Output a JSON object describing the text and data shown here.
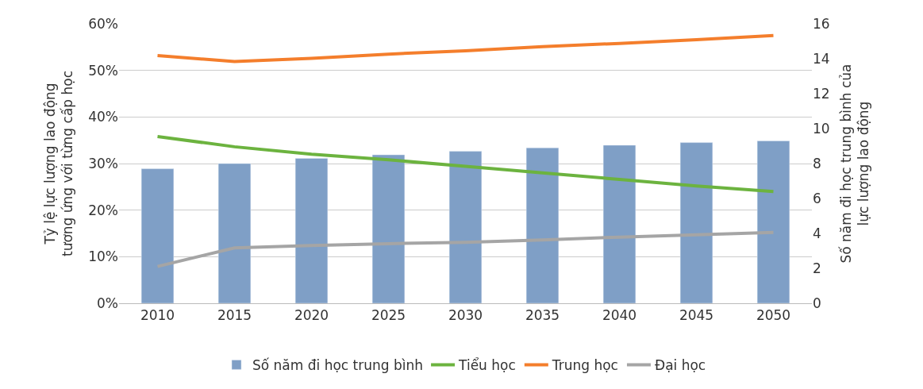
{
  "chart_data": {
    "type": "bar",
    "categories": [
      "2010",
      "2015",
      "2020",
      "2025",
      "2030",
      "2035",
      "2040",
      "2045",
      "2050"
    ],
    "ylabel": "Tỷ lệ lực lượng lao động\ntương ứng với từng cấp học",
    "y2label": "Số năm đi học trung bình của\nlực lượng lao động",
    "ylim": [
      0,
      60
    ],
    "yticks": [
      {
        "value": 0,
        "label": "0%"
      },
      {
        "value": 10,
        "label": "10%"
      },
      {
        "value": 20,
        "label": "20%"
      },
      {
        "value": 30,
        "label": "30%"
      },
      {
        "value": 40,
        "label": "40%"
      },
      {
        "value": 50,
        "label": "50%"
      },
      {
        "value": 60,
        "label": "60%"
      }
    ],
    "y2lim": [
      0,
      16
    ],
    "y2ticks": [
      0,
      2,
      4,
      6,
      8,
      10,
      12,
      14,
      16
    ],
    "grid": "y",
    "legend": "bottom",
    "marker": "none",
    "line_style": "solid",
    "series": [
      {
        "name": "Số năm đi học trung bình",
        "axis": "y2",
        "color": "#7f9fc6",
        "values": [
          7.7,
          8.0,
          8.3,
          8.5,
          8.7,
          8.9,
          9.05,
          9.2,
          9.3
        ]
      },
      {
        "name": "Tiểu học",
        "type": "line",
        "color": "#6cb33f",
        "values": [
          35.8,
          33.6,
          32.0,
          30.8,
          29.4,
          28.0,
          26.6,
          25.2,
          24.0
        ]
      },
      {
        "name": "Trung học",
        "type": "line",
        "color": "#f47e2c",
        "values": [
          53.2,
          51.9,
          52.6,
          53.5,
          54.2,
          55.1,
          55.8,
          56.6,
          57.5
        ]
      },
      {
        "name": "Đại học",
        "type": "line",
        "color": "#a5a5a5",
        "values": [
          7.9,
          11.9,
          12.4,
          12.8,
          13.1,
          13.6,
          14.2,
          14.7,
          15.2
        ]
      }
    ]
  }
}
